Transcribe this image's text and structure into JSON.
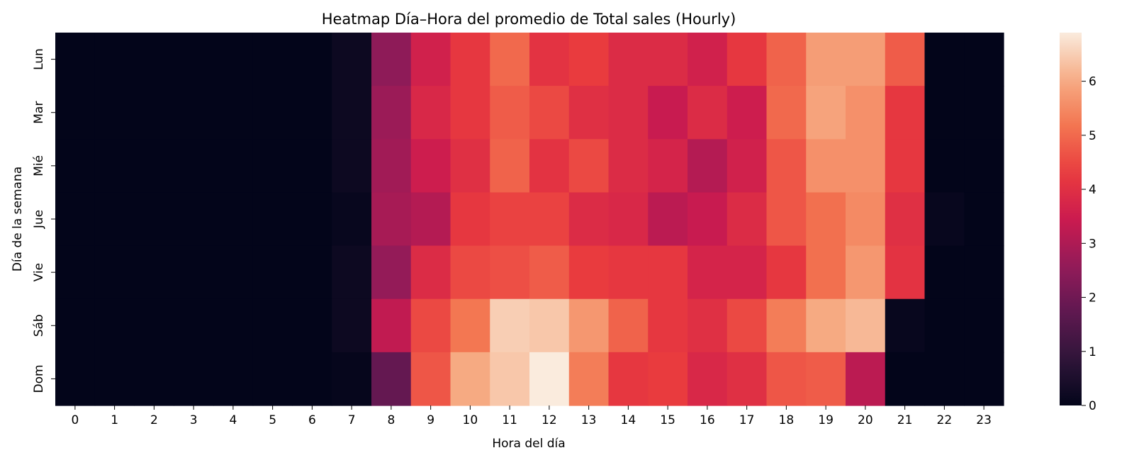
{
  "chart_data": {
    "type": "heatmap",
    "title": "Heatmap Día–Hora del promedio de Total sales (Hourly)",
    "xlabel": "Hora del día",
    "ylabel": "Día de la semana",
    "x_categories": [
      "0",
      "1",
      "2",
      "3",
      "4",
      "5",
      "6",
      "7",
      "8",
      "9",
      "10",
      "11",
      "12",
      "13",
      "14",
      "15",
      "16",
      "17",
      "18",
      "19",
      "20",
      "21",
      "22",
      "23"
    ],
    "y_categories": [
      "Lun",
      "Mar",
      "Mié",
      "Jue",
      "Vie",
      "Sáb",
      "Dom"
    ],
    "values": [
      [
        0,
        0,
        0,
        0,
        0,
        0,
        0,
        0.2,
        2.5,
        3.6,
        4.2,
        5.0,
        4.1,
        4.3,
        3.9,
        3.9,
        3.6,
        4.2,
        4.9,
        5.8,
        5.8,
        4.8,
        0,
        0
      ],
      [
        0,
        0,
        0,
        0,
        0,
        0,
        0,
        0.2,
        2.7,
        3.8,
        4.2,
        4.8,
        4.5,
        4.0,
        3.9,
        3.4,
        3.9,
        3.5,
        5.0,
        5.9,
        5.6,
        4.2,
        0,
        0
      ],
      [
        0,
        0,
        0,
        0,
        0,
        0,
        0,
        0.2,
        2.8,
        3.5,
        4.0,
        4.9,
        4.1,
        4.5,
        3.9,
        3.7,
        3.1,
        3.6,
        4.7,
        5.6,
        5.6,
        4.2,
        0,
        0
      ],
      [
        0,
        0,
        0,
        0,
        0,
        0,
        0,
        0.1,
        2.9,
        3.1,
        4.2,
        4.4,
        4.4,
        3.9,
        3.8,
        3.2,
        3.4,
        3.9,
        4.7,
        5.1,
        5.5,
        4.0,
        0.1,
        0
      ],
      [
        0,
        0,
        0,
        0,
        0,
        0,
        0,
        0.2,
        2.6,
        3.9,
        4.5,
        4.6,
        4.8,
        4.3,
        4.2,
        4.2,
        3.7,
        3.7,
        4.2,
        5.1,
        5.7,
        4.1,
        0,
        0
      ],
      [
        0,
        0,
        0,
        0,
        0,
        0,
        0,
        0.2,
        3.3,
        4.5,
        5.2,
        6.5,
        6.4,
        5.7,
        4.9,
        4.2,
        4.0,
        4.5,
        5.3,
        6.0,
        6.2,
        0.1,
        0,
        0
      ],
      [
        0,
        0,
        0,
        0,
        0,
        0,
        0,
        0.05,
        1.8,
        4.7,
        6.0,
        6.4,
        6.9,
        5.3,
        4.2,
        4.3,
        3.8,
        4.0,
        4.7,
        4.8,
        3.2,
        0,
        0,
        0
      ]
    ],
    "colormap": "rocket",
    "vmin": 0,
    "vmax": 6.9,
    "colorbar_ticks": [
      0,
      1,
      2,
      3,
      4,
      5,
      6
    ],
    "colorbar_tick_labels": [
      "0",
      "1",
      "2",
      "3",
      "4",
      "5",
      "6"
    ]
  }
}
